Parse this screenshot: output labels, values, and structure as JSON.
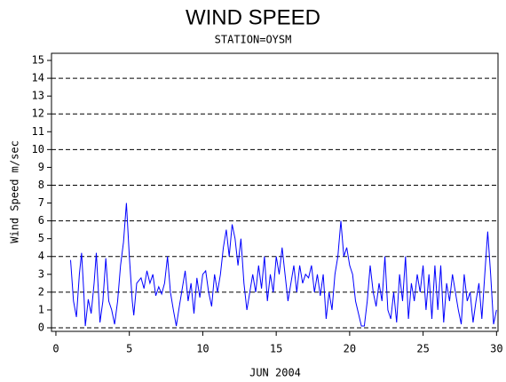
{
  "chart_data": {
    "type": "line",
    "title": "WIND SPEED",
    "subtitle": "STATION=OYSM",
    "x_label": "JUN 2004",
    "y_label": "Wind Speed m/sec",
    "xlim": [
      -0.3,
      30.1
    ],
    "xticks": [
      0,
      5,
      10,
      15,
      20,
      25,
      30
    ],
    "ylim": [
      -0.2,
      15.4
    ],
    "yticks": [
      0,
      1,
      2,
      3,
      4,
      5,
      6,
      7,
      8,
      9,
      10,
      11,
      12,
      13,
      14,
      15
    ],
    "grid_lines": [
      0,
      2,
      4,
      6,
      8,
      10,
      12,
      14
    ],
    "series": [
      {
        "color": "#0000ff",
        "x": [
          1.0,
          1.2,
          1.4,
          1.6,
          1.75,
          1.9,
          2.0,
          2.2,
          2.4,
          2.6,
          2.75,
          2.9,
          3.0,
          3.2,
          3.4,
          3.6,
          3.8,
          4.0,
          4.2,
          4.4,
          4.6,
          4.8,
          5.0,
          5.2,
          5.3,
          5.5,
          5.8,
          6.0,
          6.2,
          6.4,
          6.6,
          6.8,
          7.0,
          7.2,
          7.4,
          7.6,
          7.8,
          8.0,
          8.2,
          8.4,
          8.6,
          8.8,
          9.0,
          9.2,
          9.4,
          9.6,
          9.8,
          10.0,
          10.2,
          10.4,
          10.6,
          10.8,
          11.0,
          11.2,
          11.4,
          11.6,
          11.8,
          12.0,
          12.2,
          12.4,
          12.6,
          12.8,
          13.0,
          13.2,
          13.4,
          13.6,
          13.8,
          14.0,
          14.2,
          14.4,
          14.6,
          14.8,
          15.0,
          15.2,
          15.4,
          15.6,
          15.8,
          16.0,
          16.2,
          16.4,
          16.6,
          16.8,
          17.0,
          17.2,
          17.4,
          17.6,
          17.8,
          18.0,
          18.2,
          18.4,
          18.6,
          18.8,
          19.0,
          19.2,
          19.4,
          19.6,
          19.8,
          20.0,
          20.2,
          20.4,
          20.6,
          20.8,
          21.0,
          21.2,
          21.4,
          21.6,
          21.8,
          22.0,
          22.2,
          22.4,
          22.6,
          22.8,
          23.0,
          23.2,
          23.4,
          23.6,
          23.8,
          24.0,
          24.2,
          24.4,
          24.6,
          24.8,
          25.0,
          25.2,
          25.4,
          25.6,
          25.8,
          26.0,
          26.2,
          26.4,
          26.6,
          26.8,
          27.0,
          27.2,
          27.4,
          27.6,
          27.8,
          28.0,
          28.2,
          28.4,
          28.6,
          28.8,
          29.0,
          29.2,
          29.4,
          29.6,
          29.8,
          30.0
        ],
        "values": [
          3.8,
          1.5,
          0.6,
          3.0,
          4.2,
          2.0,
          0.1,
          1.6,
          0.8,
          2.5,
          4.2,
          2.0,
          0.3,
          1.5,
          3.9,
          1.5,
          1.0,
          0.2,
          1.5,
          3.5,
          4.8,
          7.0,
          4.0,
          1.5,
          0.7,
          2.5,
          2.8,
          2.2,
          3.2,
          2.5,
          3.0,
          1.8,
          2.3,
          1.9,
          2.5,
          4.0,
          2.0,
          1.0,
          0.1,
          1.2,
          2.2,
          3.2,
          1.5,
          2.5,
          0.8,
          2.8,
          1.7,
          3.0,
          3.2,
          2.0,
          1.2,
          3.0,
          2.0,
          3.0,
          4.5,
          5.5,
          4.0,
          5.8,
          5.0,
          3.5,
          5.0,
          2.5,
          1.0,
          2.0,
          3.0,
          2.0,
          3.5,
          2.2,
          4.0,
          1.5,
          3.0,
          2.0,
          4.0,
          3.0,
          4.5,
          3.0,
          1.5,
          2.5,
          3.5,
          2.0,
          3.5,
          2.5,
          3.0,
          2.8,
          3.5,
          2.0,
          3.0,
          1.8,
          3.0,
          0.5,
          2.0,
          1.0,
          3.0,
          4.0,
          6.0,
          4.0,
          4.5,
          3.5,
          3.0,
          1.5,
          0.8,
          0.1,
          0.1,
          1.5,
          3.5,
          2.0,
          1.2,
          2.5,
          1.5,
          4.0,
          1.0,
          0.5,
          2.0,
          0.3,
          3.0,
          1.5,
          4.0,
          0.5,
          2.5,
          1.5,
          3.0,
          2.0,
          3.5,
          1.0,
          3.0,
          0.5,
          3.5,
          1.0,
          3.5,
          0.3,
          2.5,
          1.5,
          3.0,
          2.0,
          1.0,
          0.2,
          3.0,
          1.5,
          2.0,
          0.3,
          1.5,
          2.5,
          0.5,
          3.0,
          5.4,
          3.0,
          0.2,
          1.0
        ]
      }
    ]
  }
}
